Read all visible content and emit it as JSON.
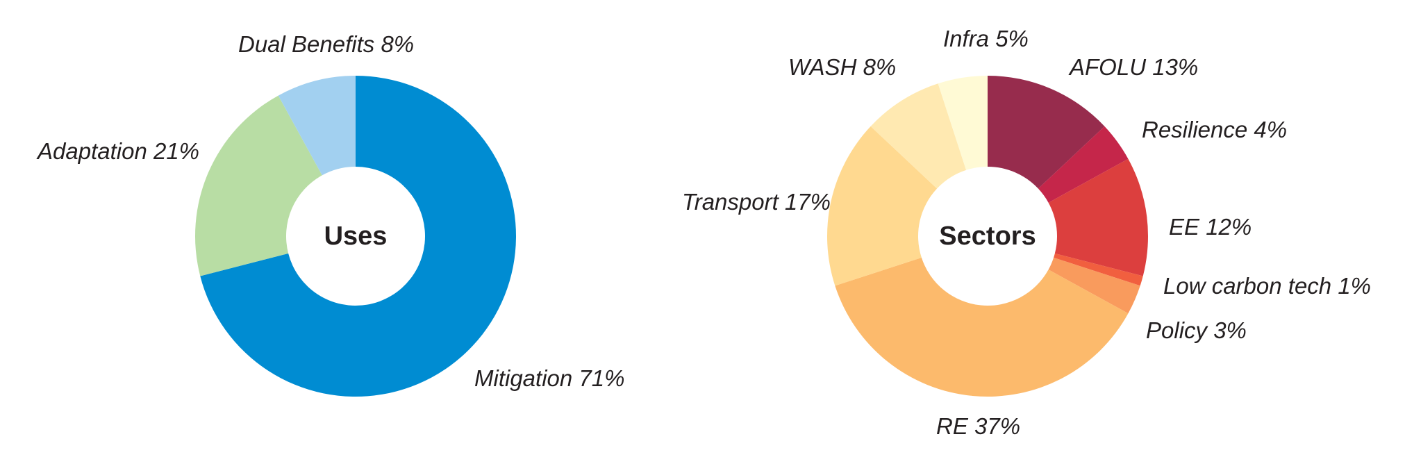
{
  "chart_data": [
    {
      "type": "pie",
      "center_label": "Uses",
      "slices": [
        {
          "label": "Mitigation 71%",
          "value": 71,
          "color": "#008cd2"
        },
        {
          "label": "Adaptation 21%",
          "value": 21,
          "color": "#b8dda4"
        },
        {
          "label": "Dual Benefits 8%",
          "value": 8,
          "color": "#a2d0f0"
        }
      ]
    },
    {
      "type": "pie",
      "center_label": "Sectors",
      "slices": [
        {
          "label": "AFOLU 13%",
          "value": 13,
          "color": "#972c4d"
        },
        {
          "label": "Resilience 4%",
          "value": 4,
          "color": "#c5264a"
        },
        {
          "label": "EE 12%",
          "value": 12,
          "color": "#dc3f3e"
        },
        {
          "label": "Low carbon tech 1%",
          "value": 1,
          "color": "#f15f3f"
        },
        {
          "label": "Policy 3%",
          "value": 3,
          "color": "#f99b5d"
        },
        {
          "label": "RE 37%",
          "value": 37,
          "color": "#fcba6c"
        },
        {
          "label": "Transport 17%",
          "value": 17,
          "color": "#ffd990"
        },
        {
          "label": "WASH 8%",
          "value": 8,
          "color": "#ffe9b1"
        },
        {
          "label": "Infra 5%",
          "value": 5,
          "color": "#fffad5"
        }
      ]
    }
  ]
}
